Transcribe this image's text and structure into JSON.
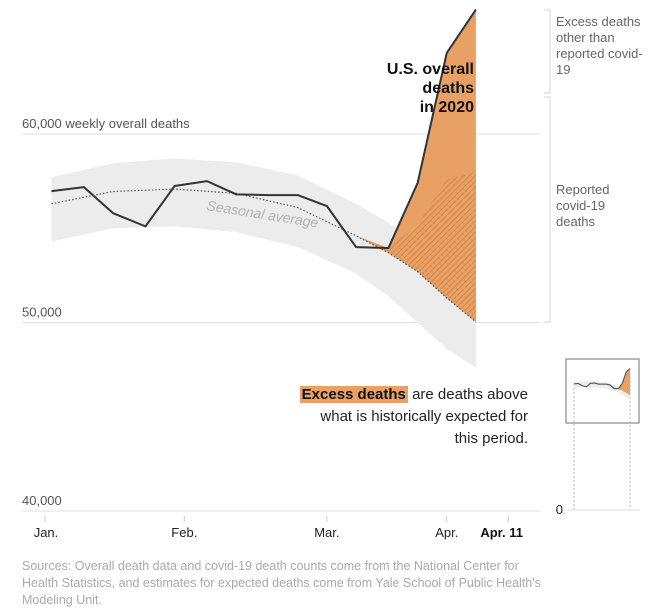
{
  "colors": {
    "excess_fill": "#e8a064",
    "hatch": "#c9773a",
    "line": "#333333",
    "band": "#ececec",
    "gridline": "#e2e2e2",
    "bracket": "#dddddd"
  },
  "annotations": {
    "title": [
      "U.S. overall",
      "deaths",
      "in 2020"
    ],
    "excess_other_label": "Excess deaths other than reported covid-19",
    "reported_covid_label": "Reported covid-19 deaths",
    "seasonal_label": "Seasonal average",
    "excess_note_highlight": "Excess deaths",
    "excess_note_rest": " are deaths above what is historically expected for this period.",
    "inset_zero_label": "0"
  },
  "sources": "Sources: Overall death data and covid-19 death counts come from the National Center for Health Statistics, and estimates for expected deaths come from Yale School of Public Health's Modeling Unit.",
  "chart_data": {
    "type": "area",
    "title": "U.S. overall deaths in 2020",
    "ylabel": "weekly overall deaths",
    "ylim": [
      40000,
      66600
    ],
    "yticks": [
      {
        "value": 60000,
        "label": "60,000 weekly overall deaths"
      },
      {
        "value": 50000,
        "label": "50,000"
      },
      {
        "value": 40000,
        "label": "40,000"
      }
    ],
    "xticks": [
      {
        "week": 0,
        "label": "Jan.",
        "bold": false
      },
      {
        "week": 4.3,
        "label": "Feb.",
        "bold": false
      },
      {
        "week": 8.7,
        "label": "Mar.",
        "bold": false
      },
      {
        "week": 12.4,
        "label": "Apr.",
        "bold": false
      },
      {
        "week": 14.3,
        "label": "Apr. 11",
        "bold": true
      }
    ],
    "grid": true,
    "series": [
      {
        "name": "U.S. overall deaths in 2020",
        "weeks": [
          0.2,
          1.2,
          2.1,
          3.1,
          4.0,
          5.0,
          5.9,
          6.9,
          7.8,
          8.7,
          9.6,
          10.6,
          11.5,
          12.4,
          13.3
        ],
        "values": [
          56970,
          57180,
          55800,
          55100,
          57240,
          57500,
          56800,
          56760,
          56760,
          56180,
          54000,
          53950,
          57400,
          64300,
          66600
        ]
      },
      {
        "name": "Seasonal average",
        "weeks": [
          0.2,
          2.1,
          4.0,
          5.9,
          7.8,
          9.6,
          10.6,
          11.5,
          12.4,
          13.3
        ],
        "values": [
          56300,
          56950,
          57080,
          56850,
          56100,
          54600,
          53700,
          52700,
          51300,
          50030
        ]
      },
      {
        "name": "Seasonal band upper",
        "weeks": [
          0.2,
          2.1,
          4.0,
          5.9,
          7.8,
          9.6,
          10.6,
          11.5,
          12.4,
          13.3
        ],
        "values": [
          57700,
          58450,
          58700,
          58500,
          57800,
          56300,
          55300,
          54200,
          53000,
          52900
        ]
      },
      {
        "name": "Seasonal band lower",
        "weeks": [
          0.2,
          2.1,
          4.0,
          5.9,
          7.8,
          9.6,
          10.6,
          11.5,
          12.4,
          13.3
        ],
        "values": [
          54300,
          55000,
          55100,
          54800,
          54000,
          52600,
          51400,
          50000,
          48600,
          47600
        ]
      },
      {
        "name": "Reported covid-19 upper bound",
        "weeks": [
          10.6,
          11.5,
          12.4,
          13.3
        ],
        "values": [
          53950,
          55200,
          57600,
          58000
        ]
      }
    ],
    "legend": [
      "Excess deaths other than reported covid-19",
      "Reported covid-19 deaths"
    ]
  }
}
